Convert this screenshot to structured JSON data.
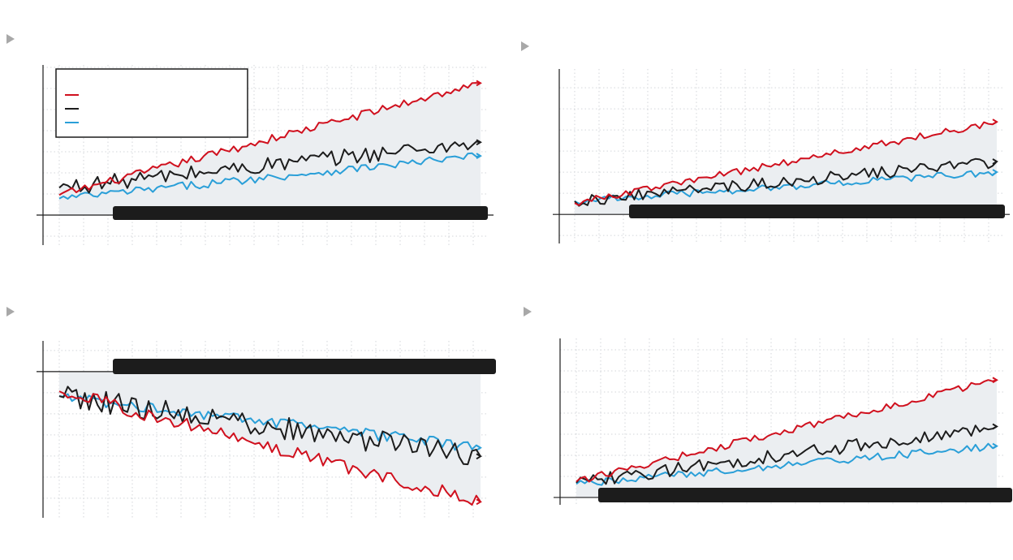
{
  "colors": {
    "red": "#d0101e",
    "black": "#1c1c1c",
    "blue": "#2a9fd8",
    "fill": "#ebeef1",
    "grid": "#d3d6da",
    "axis": "#1c1c1c",
    "bar": "#1c1c1c",
    "triangle": "#a8a8a8"
  },
  "icons": {
    "panel_marker": "play-triangle-icon"
  },
  "chart_data": [
    {
      "type": "line",
      "legend": {
        "placement": "top-left",
        "entries": [
          "",
          "",
          ""
        ]
      },
      "grid": true,
      "n": 100,
      "xlim": [
        0,
        99
      ],
      "ylim": [
        -3.3,
        16.5
      ],
      "baseline": 0,
      "series": [
        {
          "color": "red",
          "start": 2.2,
          "end": 14.5,
          "noise": 0.45
        },
        {
          "color": "black",
          "start": 3.0,
          "end": 8.0,
          "noise": 0.9
        },
        {
          "color": "blue",
          "start": 1.8,
          "end": 6.5,
          "noise": 0.45
        }
      ]
    },
    {
      "type": "line",
      "legend": null,
      "grid": true,
      "n": 100,
      "xlim": [
        0,
        99
      ],
      "ylim": [
        -3.3,
        16.5
      ],
      "baseline": 0,
      "series": [
        {
          "color": "red",
          "start": 1.3,
          "end": 10.5,
          "noise": 0.4
        },
        {
          "color": "black",
          "start": 1.5,
          "end": 6.0,
          "noise": 0.7
        },
        {
          "color": "blue",
          "start": 1.5,
          "end": 4.8,
          "noise": 0.4
        }
      ]
    },
    {
      "type": "line",
      "legend": null,
      "grid": true,
      "n": 100,
      "xlim": [
        0,
        99
      ],
      "ylim": [
        -11.9,
        2.5
      ],
      "baseline": 0,
      "series": [
        {
          "color": "red",
          "start": -1.6,
          "end": -10.6,
          "noise": 0.55
        },
        {
          "color": "black",
          "start": -2.0,
          "end": -6.9,
          "noise": 0.9
        },
        {
          "color": "blue",
          "start": -2.0,
          "end": -6.2,
          "noise": 0.45
        }
      ]
    },
    {
      "type": "line",
      "legend": null,
      "grid": true,
      "n": 100,
      "xlim": [
        0,
        99
      ],
      "ylim": [
        -0.3,
        6.5
      ],
      "baseline": 0,
      "series": [
        {
          "color": "red",
          "start": 0.65,
          "end": 4.8,
          "noise": 0.15
        },
        {
          "color": "black",
          "start": 0.6,
          "end": 2.9,
          "noise": 0.27
        },
        {
          "color": "blue",
          "start": 0.55,
          "end": 2.1,
          "noise": 0.15
        }
      ]
    }
  ]
}
